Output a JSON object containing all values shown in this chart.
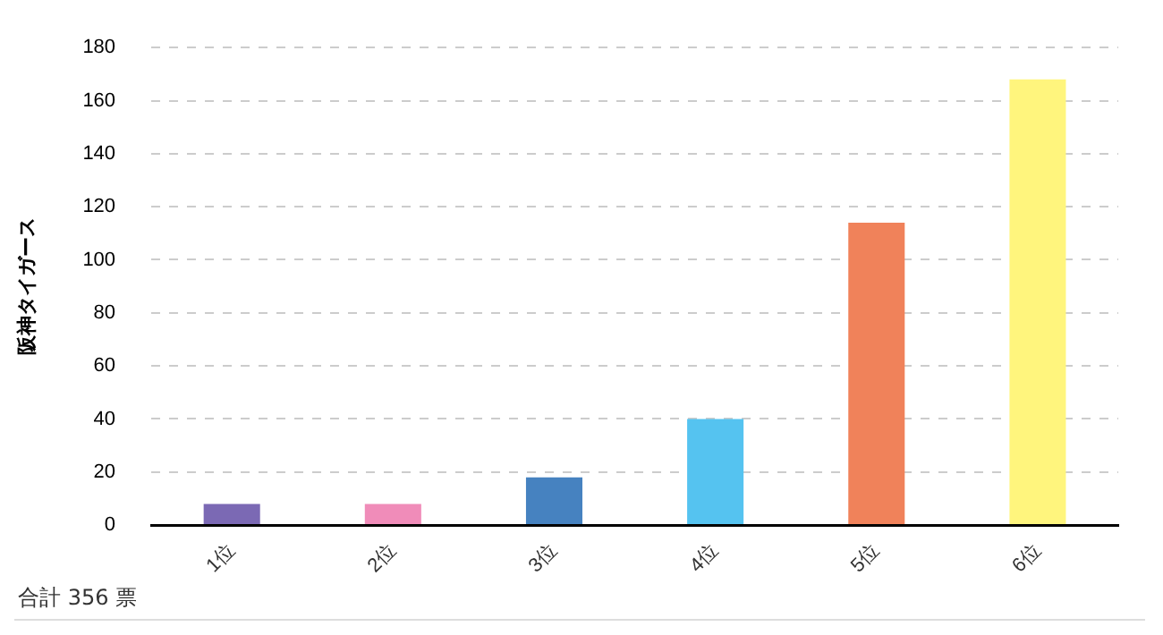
{
  "chart_data": {
    "type": "bar",
    "ylabel": "阪神タイガース",
    "categories": [
      "1位",
      "2位",
      "3位",
      "4位",
      "5位",
      "6位"
    ],
    "values": [
      8,
      8,
      18,
      40,
      114,
      168
    ],
    "colors": [
      "#7b69b4",
      "#f08cb9",
      "#4682c0",
      "#55c3f0",
      "#f0825a",
      "#fff57d"
    ],
    "ylim": [
      0,
      180
    ],
    "yticks": [
      0,
      20,
      40,
      60,
      80,
      100,
      120,
      140,
      160,
      180
    ],
    "grid": "y",
    "annotations": [
      "合計 356 票"
    ]
  }
}
